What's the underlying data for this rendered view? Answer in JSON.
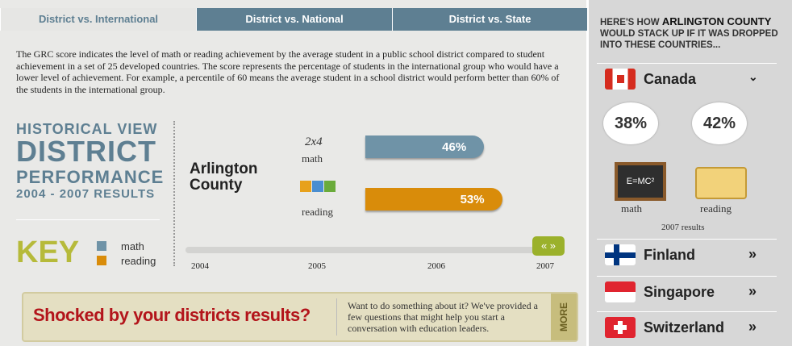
{
  "tabs": [
    "District vs. International",
    "District vs. National",
    "District vs. State"
  ],
  "description": "The GRC score indicates the level of math or reading achievement by the average student in a public school district compared to student achievement in a set of 25 developed countries. The score represents the percentage of students in the international group who would have a lower level of achievement. For example, a percentile of 60 means the average student in a school district would perform better than 60% of the students in the international group.",
  "heading": {
    "line1": "HISTORICAL VIEW",
    "line2": "DISTRICT",
    "line3": "PERFORMANCE",
    "line4": "2004 - 2007 RESULTS"
  },
  "key": {
    "title": "KEY",
    "items": [
      "math",
      "reading"
    ]
  },
  "district": "Arlington County",
  "bars": [
    {
      "label": "math",
      "color": "#6f93a7",
      "value": 46,
      "value_label": "46%"
    },
    {
      "label": "reading",
      "color": "#d98c0a",
      "value": 53,
      "value_label": "53%"
    }
  ],
  "math_icon": "2x4",
  "years": [
    "2004",
    "2005",
    "2006",
    "2007"
  ],
  "banner": {
    "headline": "Shocked by your districts results?",
    "text": "Want to do something about it? We've provided a few questions that might help you start a conversation with education leaders.",
    "button": "MORE"
  },
  "sidebar": {
    "header_pre": "HERE'S HOW ",
    "header_bold": "ARLINGTON COUNTY",
    "header_post": " WOULD STACK UP IF IT WAS DROPPED INTO THESE COUNTRIES...",
    "expanded": {
      "country": "Canada",
      "math": "38%",
      "reading": "42%",
      "math_label": "math",
      "reading_label": "reading",
      "note": "2007 results",
      "formula": "E=MC²"
    },
    "countries": [
      "Finland",
      "Singapore",
      "Switzerland"
    ]
  }
}
